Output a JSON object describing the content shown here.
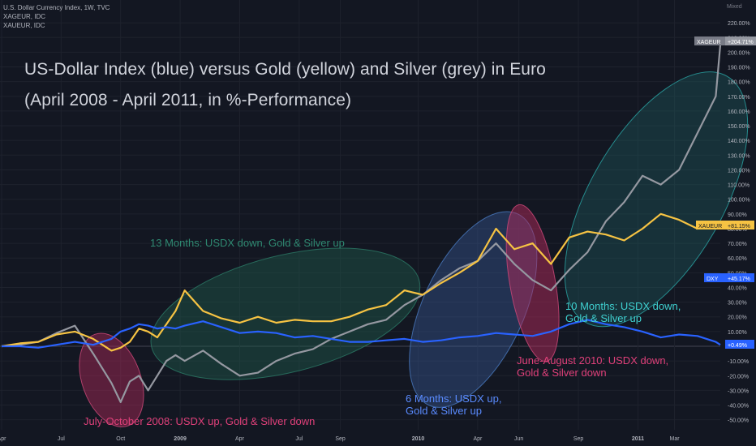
{
  "header": {
    "symbol_line": "U.S. Dollar Currency Index, 1W, TVC",
    "symbol2": "XAGEUR, IDC",
    "symbol3": "XAUEUR, IDC",
    "axis_mode": "Mixed"
  },
  "titles": {
    "line1": "US-Dollar Index (blue) versus Gold (yellow) and Silver (grey) in Euro",
    "line2": "(April 2008 - April 2011, in %-Performance)"
  },
  "colors": {
    "background": "#131722",
    "grid": "#1e222d",
    "usdx": "#2962ff",
    "gold": "#f6c343",
    "silver": "#9598a1",
    "red_phase": "#b22a5a",
    "green_phase": "#1f5a4c",
    "blue_phase": "#3a5d9a",
    "teal_phase": "#2aa6a6",
    "text": "#b2b5be"
  },
  "chart_data": {
    "type": "line",
    "x": [
      0,
      4,
      8,
      12,
      16,
      20,
      24,
      26,
      28,
      30,
      32,
      34,
      36,
      38,
      40,
      44,
      48,
      52,
      56,
      60,
      64,
      68,
      72,
      76,
      80,
      84,
      88,
      92,
      96,
      100,
      104,
      108,
      112,
      116,
      120,
      124,
      128,
      132,
      136,
      140,
      144,
      148,
      152,
      156,
      157
    ],
    "x_tick_labels": [
      "Apr",
      "Jul",
      "Oct",
      "2009",
      "Apr",
      "Jul",
      "Sep",
      "2010",
      "Apr",
      "Jun",
      "Sep",
      "2011",
      "Mar"
    ],
    "x_tick_positions": [
      0,
      13,
      26,
      39,
      52,
      65,
      74,
      91,
      104,
      113,
      126,
      139,
      147
    ],
    "y_tick_labels": [
      "220.00%",
      "210.00%",
      "200.00%",
      "190.00%",
      "180.00%",
      "170.00%",
      "160.00%",
      "150.00%",
      "140.00%",
      "130.00%",
      "120.00%",
      "110.00%",
      "100.00%",
      "90.00%",
      "80.00%",
      "70.00%",
      "60.00%",
      "50.00%",
      "40.00%",
      "30.00%",
      "20.00%",
      "10.00%",
      "0.00%",
      "-10.00%",
      "-20.00%",
      "-30.00%",
      "-40.00%",
      "-50.00%"
    ],
    "ylim": [
      -55,
      225
    ],
    "series": [
      {
        "name": "DXY",
        "values": [
          0,
          0,
          -1,
          1,
          3,
          1,
          5,
          10,
          12,
          15,
          14,
          12,
          13,
          12,
          14,
          17,
          13,
          9,
          10,
          9,
          6,
          7,
          5,
          3,
          3,
          4,
          5,
          3,
          4,
          6,
          7,
          9,
          8,
          7,
          10,
          15,
          18,
          15,
          13,
          10,
          6,
          8,
          7,
          3,
          1
        ]
      },
      {
        "name": "XAUEUR",
        "values": [
          0,
          2,
          3,
          8,
          10,
          5,
          -3,
          -1,
          3,
          12,
          10,
          6,
          15,
          24,
          38,
          24,
          19,
          16,
          20,
          16,
          18,
          17,
          17,
          20,
          25,
          28,
          38,
          35,
          43,
          50,
          58,
          80,
          66,
          70,
          56,
          74,
          78,
          76,
          72,
          80,
          90,
          86,
          80,
          82,
          81
        ]
      },
      {
        "name": "XAGEUR",
        "values": [
          0,
          1,
          3,
          9,
          14,
          -5,
          -25,
          -38,
          -24,
          -20,
          -30,
          -20,
          -10,
          -6,
          -10,
          -3,
          -12,
          -20,
          -18,
          -10,
          -5,
          -2,
          5,
          10,
          15,
          18,
          28,
          35,
          45,
          53,
          58,
          70,
          56,
          45,
          38,
          52,
          64,
          85,
          98,
          116,
          110,
          120,
          145,
          170,
          205
        ]
      }
    ],
    "last_value_labels": [
      "XAGEUR",
      "+204.71%",
      "XAUEUR",
      "+81.15%",
      "DXY",
      "+45.17%",
      "+0.49%"
    ],
    "annotations": [
      "July-October 2008: USDX up, Gold & Silver down",
      "13 Months: USDX down, Gold & Silver up",
      "6 Months: USDX up,",
      "Gold & Silver up",
      "June-August 2010: USDX down,",
      "Gold & Silver down",
      "10 Months: USDX down,",
      "Gold & Silver up"
    ],
    "grid": true,
    "legend": "top-left"
  }
}
